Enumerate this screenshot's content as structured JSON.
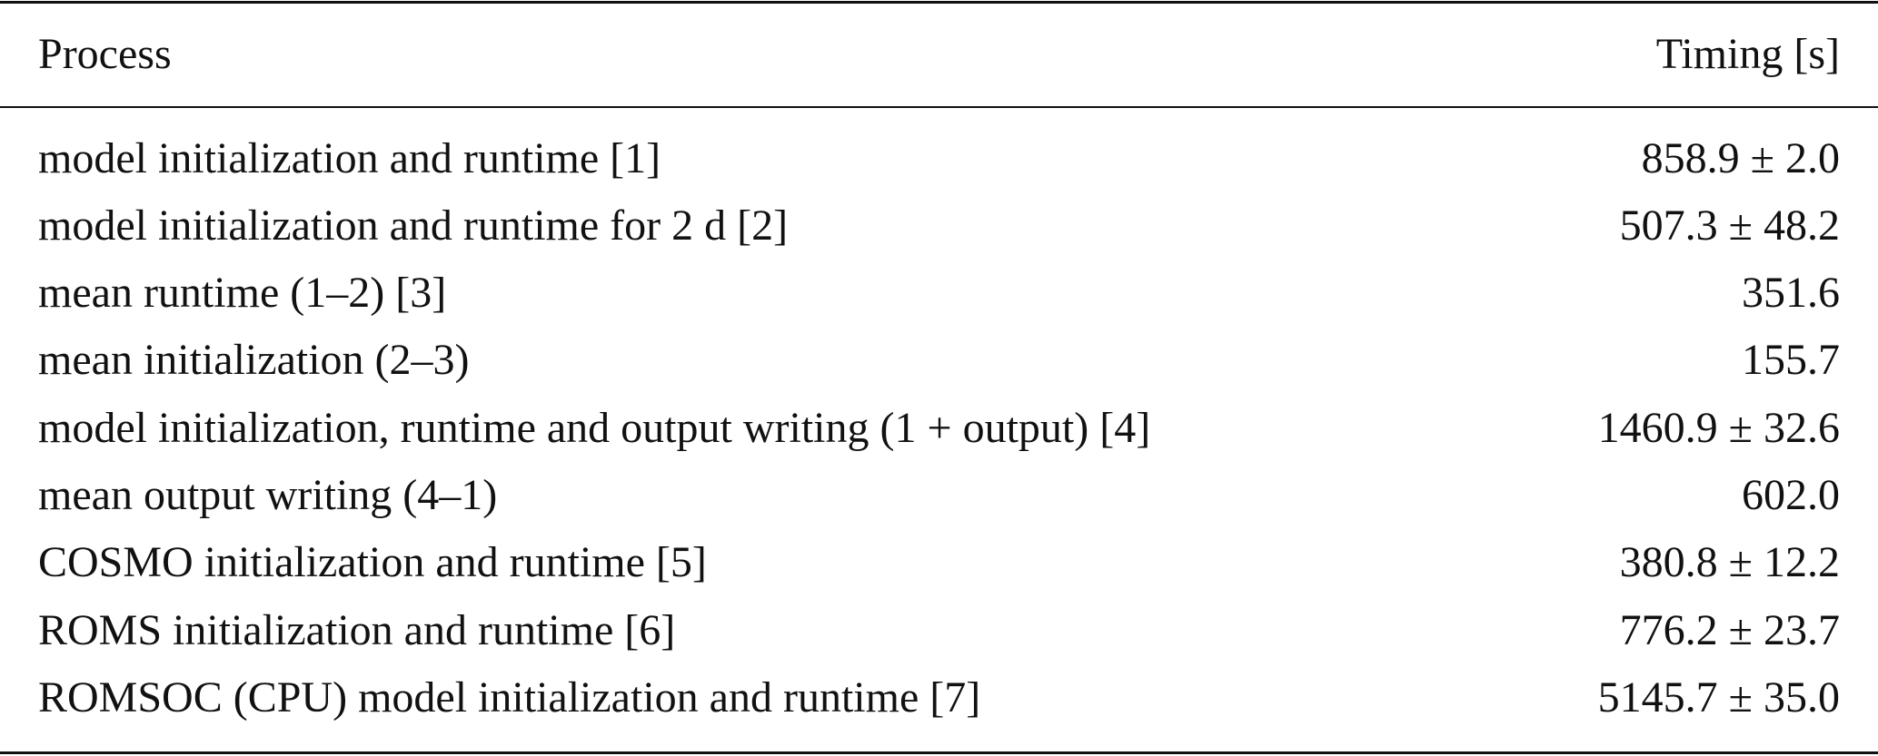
{
  "table": {
    "columns": [
      "Process",
      "Timing [s]"
    ],
    "rows": [
      {
        "process": "model initialization and runtime [1]",
        "timing": "858.9 ± 2.0"
      },
      {
        "process": "model initialization and runtime for 2 d [2]",
        "timing": "507.3 ± 48.2"
      },
      {
        "process": "mean runtime (1–2) [3]",
        "timing": "351.6"
      },
      {
        "process": "mean initialization (2–3)",
        "timing": "155.7"
      },
      {
        "process": "model initialization, runtime and output writing (1 + output) [4]",
        "timing": "1460.9 ± 32.6"
      },
      {
        "process": "mean output writing (4–1)",
        "timing": "602.0"
      },
      {
        "process": "COSMO initialization and runtime [5]",
        "timing": "380.8 ± 12.2"
      },
      {
        "process": "ROMS initialization and runtime [6]",
        "timing": "776.2 ± 23.7"
      },
      {
        "process": "ROMSOC (CPU) model initialization and runtime [7]",
        "timing": "5145.7 ± 35.0"
      }
    ]
  }
}
